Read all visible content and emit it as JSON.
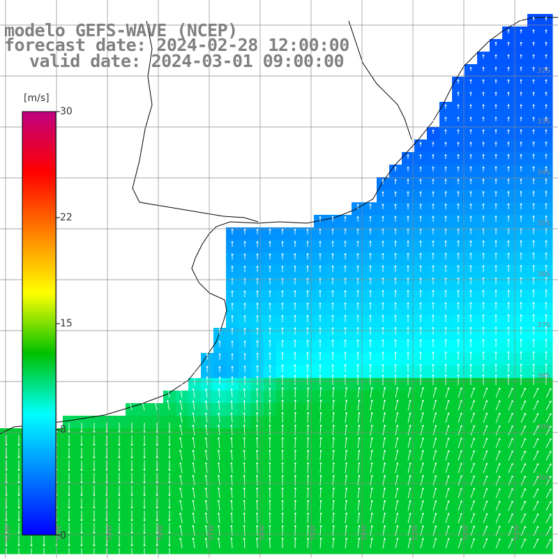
{
  "title": {
    "model": "modelo GEFS-WAVE (NCEP)",
    "forecast": "forecast date: 2024-02-28 12:00:00",
    "valid": "valid date: 2024-03-01 09:00:00"
  },
  "colorbar": {
    "unit": "[m/s]",
    "ticks": [
      "30",
      "22",
      "15",
      "8",
      "0"
    ],
    "min": 0,
    "max": 30,
    "stops": [
      "#0000ff",
      "#0080ff",
      "#00ffff",
      "#00c000",
      "#ffff00",
      "#ff8000",
      "#ff0000",
      "#c00080"
    ]
  },
  "lat_labels": [
    "32S",
    "33S",
    "34S",
    "35S",
    "36S",
    "37S",
    "38S",
    "39S",
    "40S"
  ],
  "lon_labels": [
    "61W",
    "60W",
    "59W",
    "58W",
    "57W",
    "56W",
    "55W",
    "54W",
    "53W",
    "52W",
    "51W"
  ],
  "map": {
    "land_color": "#ffffff",
    "coast_color": "#000000",
    "grid_color": "#888888",
    "ocean_low": "#0000ff",
    "ocean_mid": "#00ffff",
    "ocean_high": "#00ff00"
  }
}
